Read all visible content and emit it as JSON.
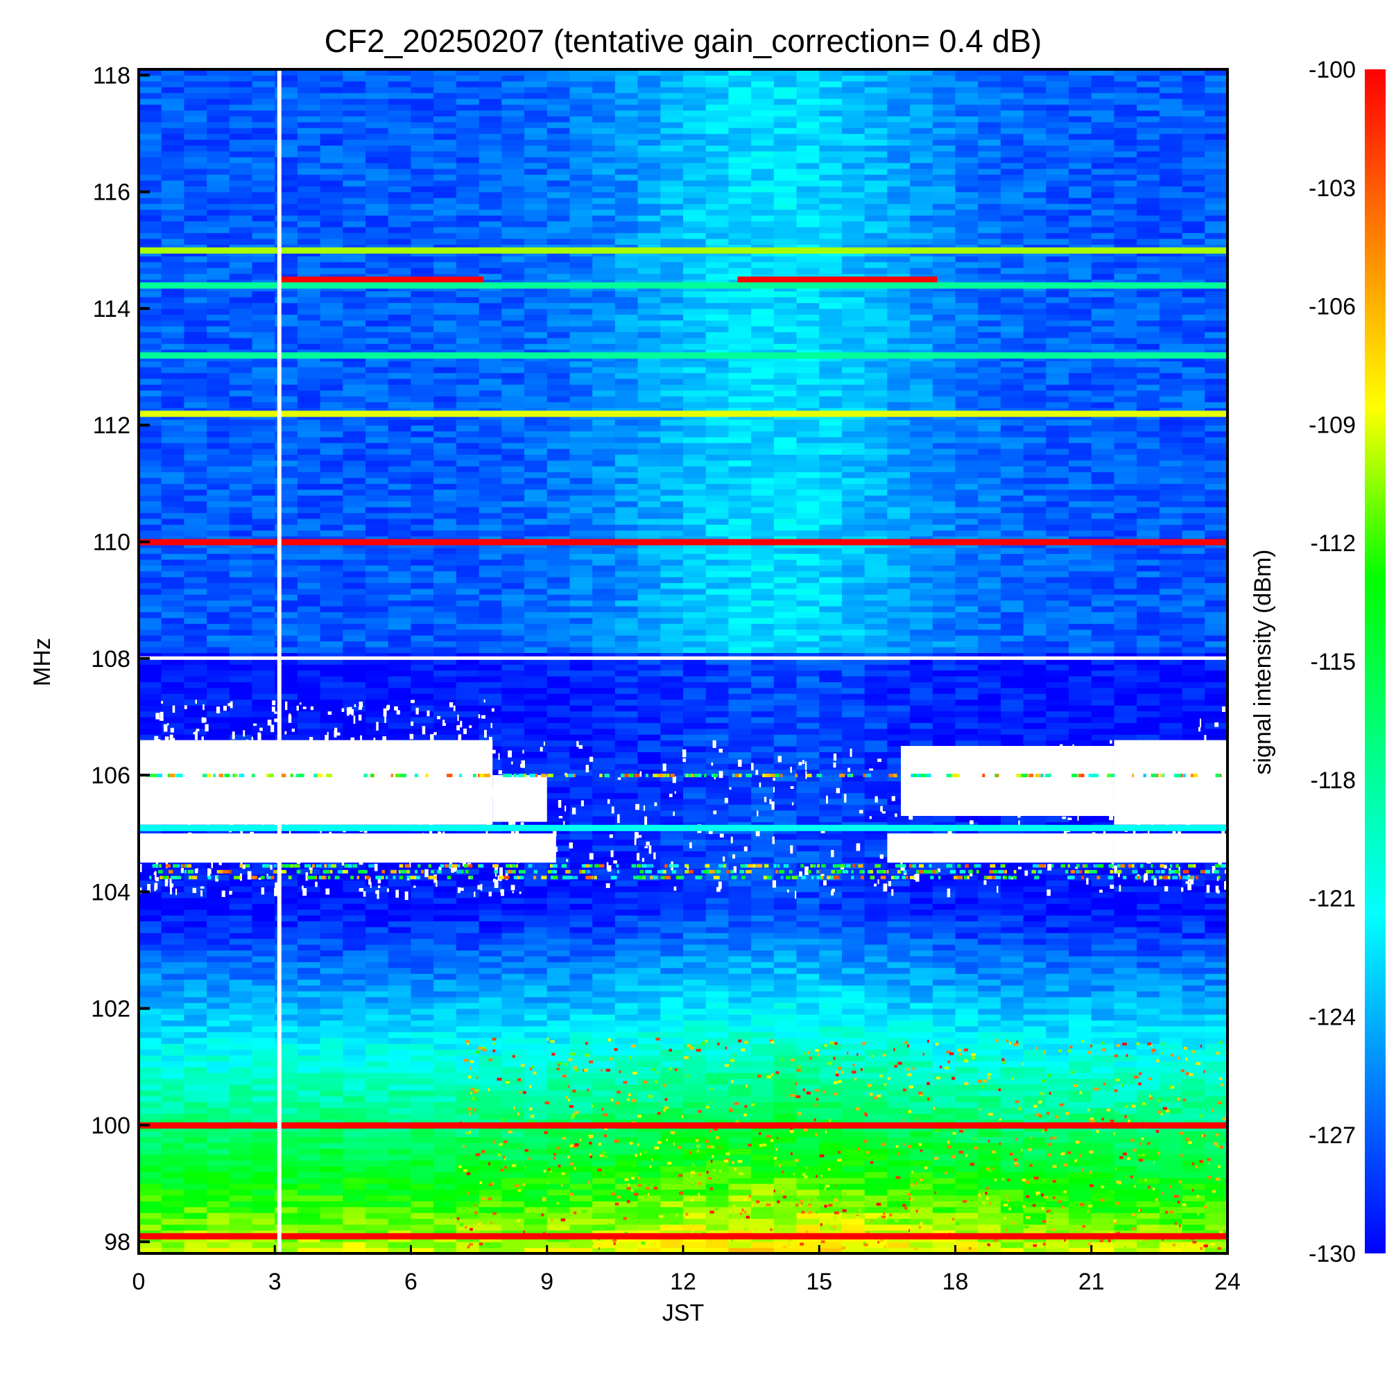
{
  "chart_data": {
    "type": "heatmap",
    "title": "CF2_20250207 (tentative gain_correction=  0.4 dB)",
    "xlabel": "JST",
    "ylabel": "MHz",
    "colorbar_label": "signal intensity (dBm)",
    "x_ticks": [
      "0",
      "3",
      "6",
      "9",
      "12",
      "15",
      "18",
      "21",
      "24"
    ],
    "y_ticks": [
      "98",
      "100",
      "102",
      "104",
      "106",
      "108",
      "110",
      "112",
      "114",
      "116",
      "118"
    ],
    "colorbar_ticks": [
      "-100",
      "-103",
      "-106",
      "-109",
      "-112",
      "-115",
      "-118",
      "-121",
      "-124",
      "-127",
      "-130"
    ],
    "xlim": [
      0,
      24
    ],
    "ylim": [
      97.8,
      118.1
    ],
    "clim": [
      -130,
      -100
    ],
    "colormap": [
      "#0000ff",
      "#0080ff",
      "#00ffff",
      "#00ff80",
      "#00ff00",
      "#ffff00",
      "#ff8000",
      "#ff0000"
    ],
    "gap_time_jst": 3.1,
    "strong_lines": [
      {
        "freq": 110.0,
        "start": 0,
        "end": 24,
        "dbm": -100
      },
      {
        "freq": 100.0,
        "start": 0,
        "end": 24,
        "dbm": -100
      },
      {
        "freq": 98.1,
        "start": 0,
        "end": 24,
        "dbm": -100
      },
      {
        "freq": 114.5,
        "start": 3.1,
        "end": 7.6,
        "dbm": -100
      },
      {
        "freq": 114.5,
        "start": 13.2,
        "end": 17.6,
        "dbm": -100
      },
      {
        "freq": 115.0,
        "start": 0,
        "end": 24,
        "dbm": -110
      },
      {
        "freq": 112.2,
        "start": 0,
        "end": 24,
        "dbm": -109
      },
      {
        "freq": 105.1,
        "start": 0,
        "end": 24,
        "dbm": -121
      },
      {
        "freq": 113.2,
        "start": 0,
        "end": 24,
        "dbm": -118
      },
      {
        "freq": 114.4,
        "start": 0,
        "end": 24,
        "dbm": -118
      }
    ]
  }
}
